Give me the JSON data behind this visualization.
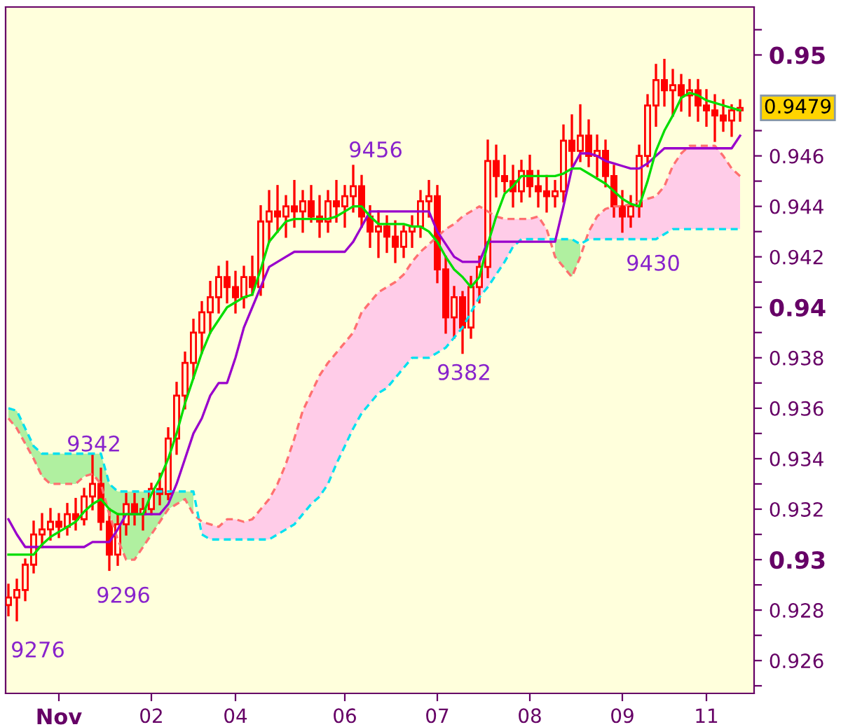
{
  "chart_data": {
    "type": "candlestick",
    "color": "#ff0000",
    "categories": [
      null,
      null,
      null,
      null,
      null,
      null,
      "Nov",
      null,
      null,
      null,
      null,
      null,
      null,
      null,
      null,
      null,
      null,
      "02",
      null,
      null,
      null,
      null,
      null,
      null,
      null,
      null,
      null,
      "04",
      null,
      null,
      null,
      null,
      null,
      null,
      null,
      null,
      null,
      null,
      null,
      null,
      "06",
      null,
      null,
      null,
      null,
      null,
      null,
      null,
      null,
      null,
      null,
      "07",
      null,
      null,
      null,
      null,
      null,
      null,
      null,
      null,
      null,
      null,
      "08",
      null,
      null,
      null,
      null,
      null,
      null,
      null,
      null,
      null,
      null,
      "09",
      null,
      null,
      null,
      null,
      null,
      null,
      null,
      null,
      null,
      "11",
      null,
      null,
      null,
      null
    ],
    "ohlc": [
      [
        0.9282,
        0.929,
        0.9278,
        0.9285
      ],
      [
        0.9285,
        0.9292,
        0.9276,
        0.9288
      ],
      [
        0.9288,
        0.93,
        0.9284,
        0.9298
      ],
      [
        0.9298,
        0.9315,
        0.9295,
        0.931
      ],
      [
        0.931,
        0.9318,
        0.9305,
        0.9312
      ],
      [
        0.9312,
        0.932,
        0.9308,
        0.9315
      ],
      [
        0.9315,
        0.9318,
        0.9309,
        0.9313
      ],
      [
        0.9313,
        0.9322,
        0.931,
        0.9318
      ],
      [
        0.9318,
        0.9324,
        0.9312,
        0.9316
      ],
      [
        0.9316,
        0.9328,
        0.9314,
        0.9325
      ],
      [
        0.9325,
        0.9342,
        0.932,
        0.933
      ],
      [
        0.933,
        0.9336,
        0.9312,
        0.9315
      ],
      [
        0.9315,
        0.932,
        0.9296,
        0.9302
      ],
      [
        0.9302,
        0.9318,
        0.9298,
        0.9314
      ],
      [
        0.9314,
        0.9326,
        0.931,
        0.9322
      ],
      [
        0.9322,
        0.9326,
        0.9314,
        0.9318
      ],
      [
        0.9318,
        0.9324,
        0.9312,
        0.932
      ],
      [
        0.932,
        0.933,
        0.9318,
        0.9328
      ],
      [
        0.9328,
        0.9334,
        0.9322,
        0.9326
      ],
      [
        0.9326,
        0.9352,
        0.9324,
        0.9348
      ],
      [
        0.9348,
        0.937,
        0.9342,
        0.9365
      ],
      [
        0.9365,
        0.9382,
        0.936,
        0.9378
      ],
      [
        0.9378,
        0.9395,
        0.9372,
        0.939
      ],
      [
        0.939,
        0.9402,
        0.9382,
        0.9398
      ],
      [
        0.9398,
        0.941,
        0.939,
        0.9404
      ],
      [
        0.9404,
        0.9416,
        0.9398,
        0.9412
      ],
      [
        0.9412,
        0.9418,
        0.9402,
        0.9408
      ],
      [
        0.9408,
        0.9414,
        0.9398,
        0.9404
      ],
      [
        0.9404,
        0.9416,
        0.94,
        0.9412
      ],
      [
        0.9412,
        0.942,
        0.9405,
        0.9408
      ],
      [
        0.9408,
        0.944,
        0.9405,
        0.9434
      ],
      [
        0.9434,
        0.9446,
        0.9426,
        0.9438
      ],
      [
        0.9438,
        0.9448,
        0.943,
        0.9436
      ],
      [
        0.9436,
        0.9444,
        0.9428,
        0.944
      ],
      [
        0.944,
        0.945,
        0.9432,
        0.9438
      ],
      [
        0.9438,
        0.9446,
        0.943,
        0.9442
      ],
      [
        0.9442,
        0.9448,
        0.9434,
        0.9436
      ],
      [
        0.9436,
        0.9444,
        0.9428,
        0.9434
      ],
      [
        0.9434,
        0.9446,
        0.943,
        0.9442
      ],
      [
        0.9442,
        0.945,
        0.9434,
        0.944
      ],
      [
        0.944,
        0.9448,
        0.9432,
        0.9444
      ],
      [
        0.9444,
        0.9456,
        0.9438,
        0.9448
      ],
      [
        0.9448,
        0.9452,
        0.9432,
        0.9436
      ],
      [
        0.9436,
        0.944,
        0.9424,
        0.943
      ],
      [
        0.943,
        0.9438,
        0.942,
        0.9432
      ],
      [
        0.9432,
        0.9436,
        0.9422,
        0.9428
      ],
      [
        0.9428,
        0.9434,
        0.9418,
        0.9424
      ],
      [
        0.9424,
        0.9432,
        0.942,
        0.943
      ],
      [
        0.943,
        0.9436,
        0.9424,
        0.9432
      ],
      [
        0.9432,
        0.9446,
        0.9428,
        0.9442
      ],
      [
        0.9442,
        0.945,
        0.9436,
        0.9444
      ],
      [
        0.9444,
        0.9448,
        0.941,
        0.9415
      ],
      [
        0.9415,
        0.942,
        0.939,
        0.9396
      ],
      [
        0.9396,
        0.9408,
        0.9388,
        0.9404
      ],
      [
        0.9404,
        0.9406,
        0.9382,
        0.9392
      ],
      [
        0.9392,
        0.9412,
        0.9388,
        0.9408
      ],
      [
        0.9408,
        0.942,
        0.9402,
        0.9416
      ],
      [
        0.9416,
        0.9466,
        0.9412,
        0.9458
      ],
      [
        0.9458,
        0.9464,
        0.9444,
        0.9452
      ],
      [
        0.9452,
        0.946,
        0.9446,
        0.945
      ],
      [
        0.945,
        0.9456,
        0.944,
        0.9446
      ],
      [
        0.9446,
        0.9458,
        0.9442,
        0.9454
      ],
      [
        0.9454,
        0.946,
        0.9444,
        0.9448
      ],
      [
        0.9448,
        0.9454,
        0.944,
        0.9446
      ],
      [
        0.9446,
        0.9452,
        0.9438,
        0.9444
      ],
      [
        0.9444,
        0.945,
        0.944,
        0.9446
      ],
      [
        0.9446,
        0.9472,
        0.9442,
        0.9466
      ],
      [
        0.9466,
        0.9476,
        0.9456,
        0.9462
      ],
      [
        0.9462,
        0.948,
        0.9458,
        0.9468
      ],
      [
        0.9468,
        0.9474,
        0.9456,
        0.946
      ],
      [
        0.946,
        0.9468,
        0.9452,
        0.9462
      ],
      [
        0.9462,
        0.9466,
        0.9448,
        0.9452
      ],
      [
        0.9452,
        0.9456,
        0.9436,
        0.944
      ],
      [
        0.944,
        0.9446,
        0.943,
        0.9436
      ],
      [
        0.9436,
        0.9444,
        0.9432,
        0.944
      ],
      [
        0.944,
        0.9464,
        0.9436,
        0.946
      ],
      [
        0.946,
        0.9484,
        0.9456,
        0.948
      ],
      [
        0.948,
        0.9496,
        0.9472,
        0.949
      ],
      [
        0.949,
        0.9498,
        0.948,
        0.9486
      ],
      [
        0.9486,
        0.9494,
        0.9476,
        0.9488
      ],
      [
        0.9488,
        0.9492,
        0.9478,
        0.9484
      ],
      [
        0.9484,
        0.949,
        0.9476,
        0.9486
      ],
      [
        0.9486,
        0.949,
        0.9474,
        0.948
      ],
      [
        0.948,
        0.9486,
        0.9472,
        0.9478
      ],
      [
        0.9478,
        0.9484,
        0.9466,
        0.9476
      ],
      [
        0.9476,
        0.9482,
        0.947,
        0.9474
      ],
      [
        0.9474,
        0.948,
        0.9468,
        0.9478
      ],
      [
        0.9478,
        0.9482,
        0.9474,
        0.9479
      ]
    ],
    "series": [
      {
        "type": "line",
        "color": "#ff7070",
        "line_style": "dashed",
        "upper": [
          null,
          null,
          null,
          null,
          null,
          null,
          null,
          null,
          null,
          null,
          null,
          null,
          null,
          null,
          null,
          null,
          null,
          null,
          null,
          null,
          null,
          null,
          null,
          0.9315,
          0.9314,
          0.9313,
          0.9316,
          0.9316,
          0.9315,
          0.9316,
          0.932,
          0.9324,
          0.933,
          0.9338,
          0.9348,
          0.9359,
          0.9366,
          0.9373,
          0.9378,
          0.9382,
          0.9386,
          0.939,
          0.9398,
          0.9402,
          0.9406,
          0.9408,
          0.941,
          0.9413,
          0.9418,
          0.9422,
          0.9425,
          0.9428,
          0.9431,
          0.9433,
          0.9436,
          0.9438,
          0.944,
          0.9438,
          0.9436,
          0.9435,
          0.9435,
          0.9435,
          0.9435,
          0.9436,
          0.9431,
          null,
          null,
          null,
          null,
          0.943,
          0.9436,
          0.9439,
          0.944,
          0.944,
          0.9441,
          0.9442,
          0.9443,
          0.9444,
          0.9448,
          0.9456,
          0.9461,
          0.9464,
          0.9464,
          0.9464,
          0.9464,
          0.946,
          0.9455,
          0.9452
        ],
        "lower": [
          null,
          null,
          null,
          null,
          null,
          null,
          null,
          null,
          null,
          null,
          null,
          null,
          null,
          null,
          null,
          null,
          null,
          null,
          null,
          null,
          null,
          null,
          null,
          0.931,
          0.9308,
          0.9308,
          0.9308,
          0.9308,
          0.9308,
          0.9308,
          0.9308,
          0.9308,
          0.931,
          0.9312,
          0.9314,
          0.9318,
          0.9322,
          0.9325,
          0.933,
          0.9338,
          0.9345,
          0.9352,
          0.9358,
          0.9362,
          0.9366,
          0.9368,
          0.9372,
          0.9376,
          0.938,
          0.938,
          0.938,
          0.9382,
          0.9384,
          0.9388,
          0.9392,
          0.9398,
          0.9404,
          0.9408,
          0.9413,
          0.9418,
          0.9424,
          0.9427,
          0.9427,
          0.9427,
          0.9427,
          null,
          null,
          null,
          null,
          0.9427,
          0.9427,
          0.9427,
          0.9427,
          0.9427,
          0.9427,
          0.9427,
          0.9427,
          0.9427,
          0.9429,
          0.9431,
          0.9431,
          0.9431,
          0.9431,
          0.9431,
          0.9431,
          0.9431,
          0.9431,
          0.9431
        ],
        "values": [
          0.9356,
          0.9352,
          0.9346,
          0.934,
          0.9333,
          0.933,
          0.933,
          0.933,
          0.933,
          0.9333,
          0.9334,
          0.933,
          0.9318,
          0.9308,
          0.93,
          0.93,
          0.9305,
          0.931,
          0.9315,
          0.932,
          0.9322,
          0.9324,
          0.9318,
          0.9315,
          0.9314,
          0.9313,
          0.9316,
          0.9316,
          0.9315,
          0.9316,
          0.932,
          0.9324,
          0.933,
          0.9338,
          0.9348,
          0.9359,
          0.9366,
          0.9373,
          0.9378,
          0.9382,
          0.9386,
          0.939,
          0.9398,
          0.9402,
          0.9406,
          0.9408,
          0.941,
          0.9413,
          0.9418,
          0.9422,
          0.9425,
          0.9428,
          0.9431,
          0.9433,
          0.9436,
          0.9438,
          0.944,
          0.9438,
          0.9436,
          0.9435,
          0.9435,
          0.9435,
          0.9435,
          0.9436,
          0.9431,
          0.942,
          0.9416,
          0.9412,
          0.942,
          0.943,
          0.9436,
          0.9439,
          0.944,
          0.944,
          0.9441,
          0.9442,
          0.9443,
          0.9444,
          0.9448,
          0.9456,
          0.9461,
          0.9464,
          0.9464,
          0.9464,
          0.9464,
          0.946,
          0.9455,
          0.9452
        ]
      },
      {
        "type": "line",
        "color": "#00e0f0",
        "line_style": "dashed",
        "upper": [
          0.936,
          0.9359,
          0.9352,
          0.9345,
          0.9342,
          0.9342,
          0.9342,
          0.9342,
          0.9342,
          0.9342,
          0.9342,
          0.9342,
          0.933,
          0.9327,
          0.9327,
          0.9327,
          0.9327,
          0.9327,
          0.9327,
          0.9327,
          0.9327,
          0.9327,
          0.9327,
          null,
          null,
          null,
          null,
          null,
          null,
          null,
          null,
          null,
          null,
          null,
          null,
          null,
          null,
          null,
          null,
          null,
          null,
          null,
          null,
          null,
          null,
          null,
          null,
          null,
          null,
          null,
          null,
          null,
          null,
          null,
          null,
          null,
          null,
          null,
          null,
          null,
          null,
          null,
          null,
          null,
          null,
          0.9427,
          0.9427,
          0.9427,
          0.9425,
          null,
          null,
          null,
          null,
          null,
          null,
          null,
          null,
          null,
          null,
          null,
          null,
          null,
          null,
          null,
          null,
          null,
          null,
          null
        ],
        "lower": [
          0.9356,
          0.9352,
          0.9346,
          0.934,
          0.9333,
          0.933,
          0.933,
          0.933,
          0.933,
          0.9333,
          0.9334,
          0.933,
          0.9318,
          0.9308,
          0.93,
          0.93,
          0.9305,
          0.931,
          0.9315,
          0.932,
          0.9322,
          0.9324,
          0.9318,
          null,
          null,
          null,
          null,
          null,
          null,
          null,
          null,
          null,
          null,
          null,
          null,
          null,
          null,
          null,
          null,
          null,
          null,
          null,
          null,
          null,
          null,
          null,
          null,
          null,
          null,
          null,
          null,
          null,
          null,
          null,
          null,
          null,
          null,
          null,
          null,
          null,
          null,
          null,
          null,
          null,
          null,
          0.942,
          0.9416,
          0.9412,
          0.942,
          null,
          null,
          null,
          null,
          null,
          null,
          null,
          null,
          null,
          null,
          null,
          null,
          null,
          null,
          null,
          null,
          null,
          null,
          null
        ],
        "values": [
          0.936,
          0.9359,
          0.9352,
          0.9345,
          0.9342,
          0.9342,
          0.9342,
          0.9342,
          0.9342,
          0.9342,
          0.9342,
          0.9342,
          0.933,
          0.9327,
          0.9327,
          0.9327,
          0.9327,
          0.9327,
          0.9327,
          0.9327,
          0.9327,
          0.9327,
          0.9327,
          0.931,
          0.9308,
          0.9308,
          0.9308,
          0.9308,
          0.9308,
          0.9308,
          0.9308,
          0.9308,
          0.931,
          0.9312,
          0.9314,
          0.9318,
          0.9322,
          0.9325,
          0.933,
          0.9338,
          0.9345,
          0.9352,
          0.9358,
          0.9362,
          0.9366,
          0.9368,
          0.9372,
          0.9376,
          0.938,
          0.938,
          0.938,
          0.9382,
          0.9384,
          0.9388,
          0.9392,
          0.9398,
          0.9404,
          0.9408,
          0.9413,
          0.9418,
          0.9424,
          0.9427,
          0.9427,
          0.9427,
          0.9427,
          0.9427,
          0.9427,
          0.9427,
          0.9425,
          0.9427,
          0.9427,
          0.9427,
          0.9427,
          0.9427,
          0.9427,
          0.9427,
          0.9427,
          0.9427,
          0.9429,
          0.9431,
          0.9431,
          0.9431,
          0.9431,
          0.9431,
          0.9431,
          0.9431,
          0.9431,
          0.9431
        ]
      },
      {
        "type": "line",
        "color": "#9900cc",
        "values": [
          0.9316,
          0.931,
          0.9305,
          0.9305,
          0.9305,
          0.9305,
          0.9305,
          0.9305,
          0.9305,
          0.9305,
          0.9307,
          0.9307,
          0.9307,
          0.9312,
          0.9318,
          0.9318,
          0.9318,
          0.9318,
          0.9318,
          0.9322,
          0.933,
          0.934,
          0.935,
          0.9356,
          0.9365,
          0.937,
          0.937,
          0.938,
          0.9392,
          0.94,
          0.9408,
          0.9416,
          0.9418,
          0.942,
          0.9422,
          0.9422,
          0.9422,
          0.9422,
          0.9422,
          0.9422,
          0.9422,
          0.9426,
          0.9432,
          0.9438,
          0.9438,
          0.9438,
          0.9438,
          0.9438,
          0.9438,
          0.9438,
          0.9438,
          0.943,
          0.9425,
          0.942,
          0.9418,
          0.9418,
          0.9418,
          0.9426,
          0.9426,
          0.9426,
          0.9426,
          0.9426,
          0.9426,
          0.9426,
          0.9426,
          0.9426,
          0.944,
          0.9455,
          0.9461,
          0.9461,
          0.946,
          0.9458,
          0.9457,
          0.9456,
          0.9455,
          0.9455,
          0.9457,
          0.946,
          0.9463,
          0.9463,
          0.9463,
          0.9463,
          0.9463,
          0.9463,
          0.9463,
          0.9463,
          0.9463,
          0.9468
        ]
      },
      {
        "type": "line",
        "color": "#00dd00",
        "values": [
          0.9302,
          0.9302,
          0.9302,
          0.9302,
          0.9306,
          0.9309,
          0.9311,
          0.9313,
          0.9315,
          0.9319,
          0.9322,
          0.9324,
          0.932,
          0.9318,
          0.9318,
          0.9318,
          0.9318,
          0.9326,
          0.9332,
          0.934,
          0.935,
          0.9362,
          0.9372,
          0.9382,
          0.939,
          0.9395,
          0.94,
          0.9402,
          0.9404,
          0.9405,
          0.9415,
          0.9426,
          0.943,
          0.9434,
          0.9435,
          0.9435,
          0.9435,
          0.9435,
          0.9435,
          0.9436,
          0.9438,
          0.944,
          0.944,
          0.9436,
          0.9433,
          0.9433,
          0.9433,
          0.9433,
          0.9432,
          0.9432,
          0.943,
          0.9426,
          0.942,
          0.9415,
          0.9412,
          0.9408,
          0.9412,
          0.9425,
          0.9436,
          0.9445,
          0.9448,
          0.9452,
          0.9452,
          0.9452,
          0.9452,
          0.9452,
          0.9453,
          0.9455,
          0.9455,
          0.9453,
          0.9451,
          0.9449,
          0.9446,
          0.9443,
          0.9441,
          0.944,
          0.945,
          0.9462,
          0.947,
          0.9476,
          0.9483,
          0.9485,
          0.9484,
          0.9482,
          0.9481,
          0.948,
          0.9479,
          0.9478
        ]
      }
    ],
    "ylim": [
      0.9247,
      0.9519
    ],
    "yticks": [
      {
        "value": 0.925,
        "label": null
      },
      {
        "value": 0.926,
        "label": "0.926"
      },
      {
        "value": 0.927,
        "label": null
      },
      {
        "value": 0.928,
        "label": "0.928"
      },
      {
        "value": 0.929,
        "label": null
      },
      {
        "value": 0.93,
        "label": "0.93"
      },
      {
        "value": 0.931,
        "label": null
      },
      {
        "value": 0.932,
        "label": "0.932"
      },
      {
        "value": 0.933,
        "label": null
      },
      {
        "value": 0.934,
        "label": "0.934"
      },
      {
        "value": 0.935,
        "label": null
      },
      {
        "value": 0.936,
        "label": "0.936"
      },
      {
        "value": 0.937,
        "label": null
      },
      {
        "value": 0.938,
        "label": "0.938"
      },
      {
        "value": 0.939,
        "label": null
      },
      {
        "value": 0.94,
        "label": "0.94"
      },
      {
        "value": 0.941,
        "label": null
      },
      {
        "value": 0.942,
        "label": "0.942"
      },
      {
        "value": 0.943,
        "label": null
      },
      {
        "value": 0.944,
        "label": "0.944"
      },
      {
        "value": 0.945,
        "label": null
      },
      {
        "value": 0.946,
        "label": "0.946"
      },
      {
        "value": 0.947,
        "label": null
      },
      {
        "value": 0.95,
        "label": "0.95"
      },
      {
        "value": 0.951,
        "label": null
      }
    ],
    "annotations": [
      "9276",
      "9342",
      "9296",
      "9456",
      "9382",
      "9430",
      "0.9479"
    ],
    "grid": false,
    "legend": false
  }
}
